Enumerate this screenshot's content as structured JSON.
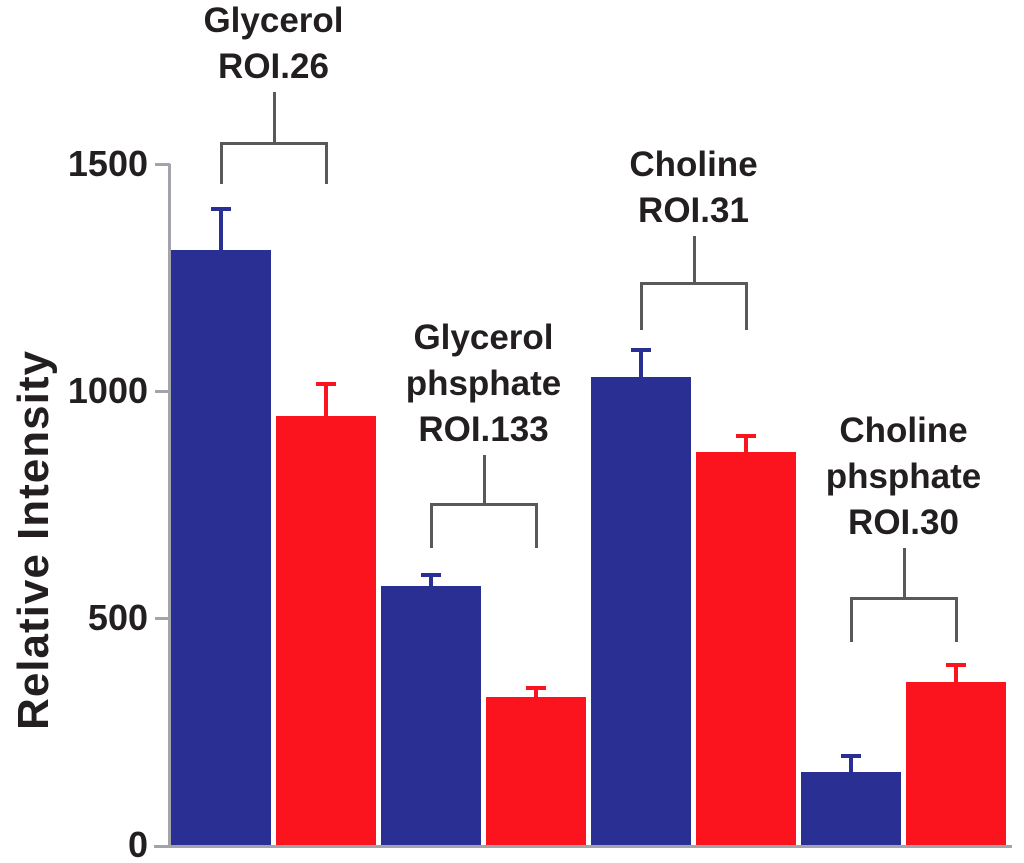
{
  "chart_data": {
    "type": "bar",
    "title": "",
    "xlabel": "",
    "ylabel": "Relative Intensity",
    "ylim": [
      0,
      1500
    ],
    "yticks": [
      0,
      500,
      1000,
      1500
    ],
    "grid": false,
    "legend": "none",
    "error_bars": true,
    "group_brackets": true,
    "categories": [
      [
        "Glycerol",
        "ROI.26"
      ],
      [
        "Glycerol",
        "phsphate",
        "ROI.133"
      ],
      [
        "Choline",
        "ROI.31"
      ],
      [
        "Choline",
        "phsphate",
        "ROI.30"
      ]
    ],
    "series": [
      {
        "name": "blue",
        "color": "#2A2F93",
        "values": [
          1310,
          570,
          1030,
          160
        ],
        "errors": [
          95,
          30,
          65,
          40
        ]
      },
      {
        "name": "red",
        "color": "#FB141E",
        "values": [
          945,
          325,
          865,
          360
        ],
        "errors": [
          75,
          25,
          40,
          40
        ]
      }
    ],
    "colors": {
      "axis": "#A3A4AB",
      "bracket": "#59595B",
      "text": "#231F20"
    }
  }
}
